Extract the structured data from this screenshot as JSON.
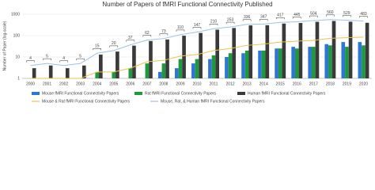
{
  "chart_data": {
    "type": "bar",
    "title": "Number of Papers of fMRI Functional Connectivity Published",
    "y_label": "Number of Paper (log-scale)",
    "log_scale": true,
    "grid": true,
    "legend": "bottom",
    "categories": [
      "2000",
      "2001",
      "2002",
      "2003",
      "2004",
      "2005",
      "2006",
      "2007",
      "2008",
      "2009",
      "2010",
      "2011",
      "2012",
      "2013",
      "2014",
      "2015",
      "2016",
      "2017",
      "2018",
      "2019",
      "2020"
    ],
    "ylim": [
      1,
      1000
    ],
    "yticks": [
      1,
      10,
      100,
      1000
    ],
    "series": [
      {
        "name": "Mouse fMRI Functional Connectivity Papers",
        "type": "bar",
        "color": "#2e75d6",
        "values": [
          null,
          null,
          null,
          null,
          null,
          null,
          null,
          1,
          2,
          3,
          5,
          8,
          10,
          15,
          20,
          25,
          30,
          30,
          40,
          50,
          50
        ]
      },
      {
        "name": "Rat fMRI Functional Connectivity Papers",
        "type": "bar",
        "color": "#1e9a3c",
        "values": [
          1,
          1,
          1,
          1,
          2,
          2,
          3,
          5,
          5,
          8,
          8,
          12,
          15,
          20,
          20,
          25,
          25,
          30,
          35,
          30,
          35
        ]
      },
      {
        "name": "Human fMRI Functional Connectivity Papers",
        "type": "bar",
        "color": "#3a3a3a",
        "values": [
          3,
          4,
          3,
          4,
          13,
          18,
          34,
          56,
          66,
          99,
          134,
          190,
          228,
          301,
          307,
          367,
          390,
          444,
          485,
          449,
          398
        ]
      },
      {
        "name": "Mouse & Rat fMRI Functional Connectivity Papers",
        "type": "line",
        "color": "#e8c44a",
        "values": [
          1,
          1,
          1,
          1,
          2,
          2,
          3,
          6,
          7,
          11,
          13,
          20,
          25,
          35,
          40,
          50,
          55,
          60,
          75,
          80,
          85
        ]
      },
      {
        "name": "Mouse, Rat, & Human fMRI Functional Connectivity Papers",
        "type": "line",
        "color": "#9cc2e6",
        "labels": true,
        "values": [
          4,
          5,
          4,
          5,
          15,
          20,
          37,
          62,
          73,
          110,
          147,
          210,
          253,
          336,
          347,
          417,
          445,
          504,
          560,
          529,
          483
        ]
      }
    ]
  }
}
